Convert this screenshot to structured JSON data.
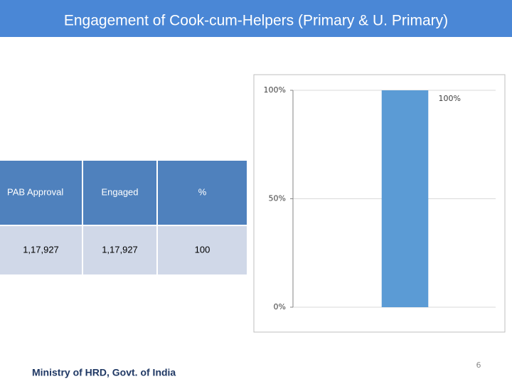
{
  "title": "Engagement of Cook-cum-Helpers (Primary & U. Primary)",
  "table": {
    "header": [
      "PAB Approval",
      "Engaged",
      "%"
    ],
    "rows": [
      [
        "1,17,927",
        "1,17,927",
        "100"
      ]
    ]
  },
  "chart_data": {
    "type": "bar",
    "categories": [
      null
    ],
    "values": [
      100
    ],
    "value_labels": [
      "100%"
    ],
    "color": "#5b9bd5",
    "ylim": [
      0,
      100
    ],
    "yticks": [
      {
        "value": 0,
        "label": "0%"
      },
      {
        "value": 50,
        "label": "50%"
      },
      {
        "value": 100,
        "label": "100%"
      }
    ],
    "grid": true
  },
  "footer": {
    "text": "Ministry of HRD, Govt. of India",
    "page_number": "6"
  }
}
